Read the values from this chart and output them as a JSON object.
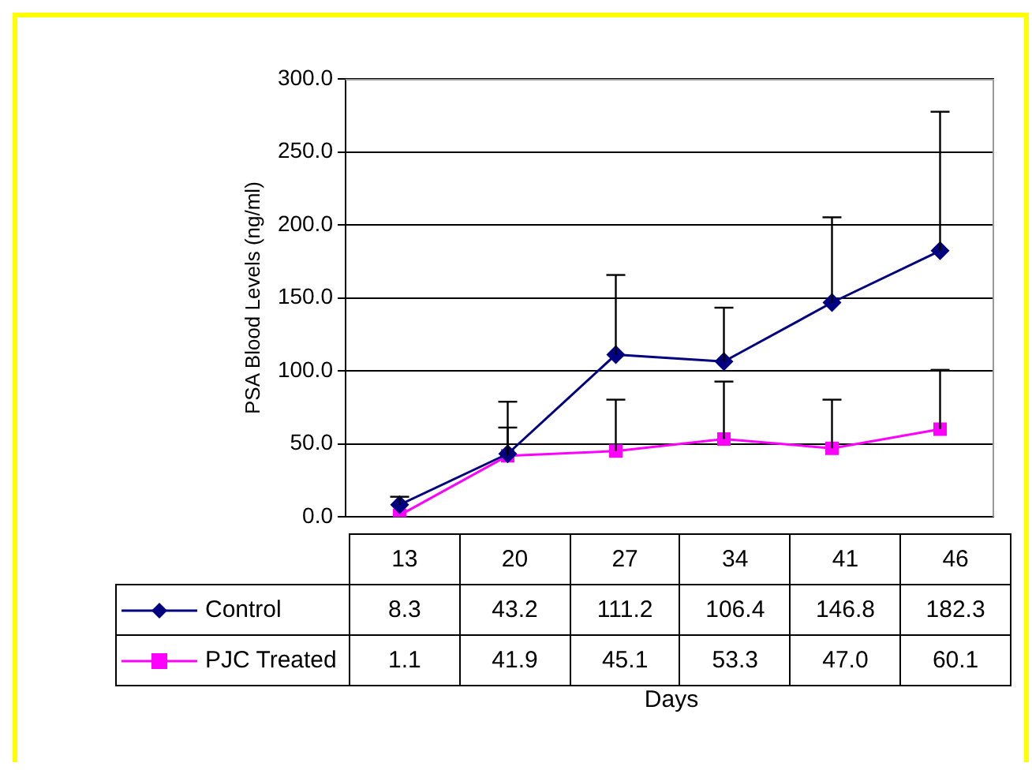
{
  "chart_data": {
    "type": "line",
    "xlabel": "Days",
    "ylabel": "PSA Blood Levels (ng/ml)",
    "categories": [
      "13",
      "20",
      "27",
      "34",
      "41",
      "46"
    ],
    "series": [
      {
        "name": "Control",
        "color": "#000080",
        "marker": "diamond",
        "values": [
          8.3,
          43.2,
          111.2,
          106.4,
          146.8,
          182.3
        ],
        "value_labels": [
          "8.3",
          "43.2",
          "111.2",
          "106.4",
          "146.8",
          "182.3"
        ],
        "errors": [
          [
            8.3,
            13.8
          ],
          [
            43.2,
            78.9
          ],
          [
            111.2,
            165.7
          ],
          [
            106.4,
            143.3
          ],
          [
            146.8,
            205.2
          ],
          [
            182.3,
            277.5
          ]
        ]
      },
      {
        "name": "PJC Treated",
        "color": "#ff00ff",
        "marker": "square",
        "values": [
          1.1,
          41.9,
          45.1,
          53.3,
          47.0,
          60.1
        ],
        "value_labels": [
          "1.1",
          "41.9",
          "45.1",
          "53.3",
          "47.0",
          "60.1"
        ],
        "errors": [
          null,
          [
            41.9,
            61.2
          ],
          [
            45.1,
            80.3
          ],
          [
            53.3,
            92.7
          ],
          [
            47.0,
            80.3
          ],
          [
            60.1,
            100.7
          ]
        ]
      }
    ],
    "ylim": [
      0,
      300
    ],
    "yticks": [
      {
        "value": 0,
        "label": "0.0"
      },
      {
        "value": 50,
        "label": "50.0"
      },
      {
        "value": 100,
        "label": "100.0"
      },
      {
        "value": 150,
        "label": "150.0"
      },
      {
        "value": 200,
        "label": "200.0"
      },
      {
        "value": 250,
        "label": "250.0"
      },
      {
        "value": 300,
        "label": "300.0"
      }
    ],
    "grid": "y",
    "legend": "bottom",
    "line_style": "solid"
  }
}
